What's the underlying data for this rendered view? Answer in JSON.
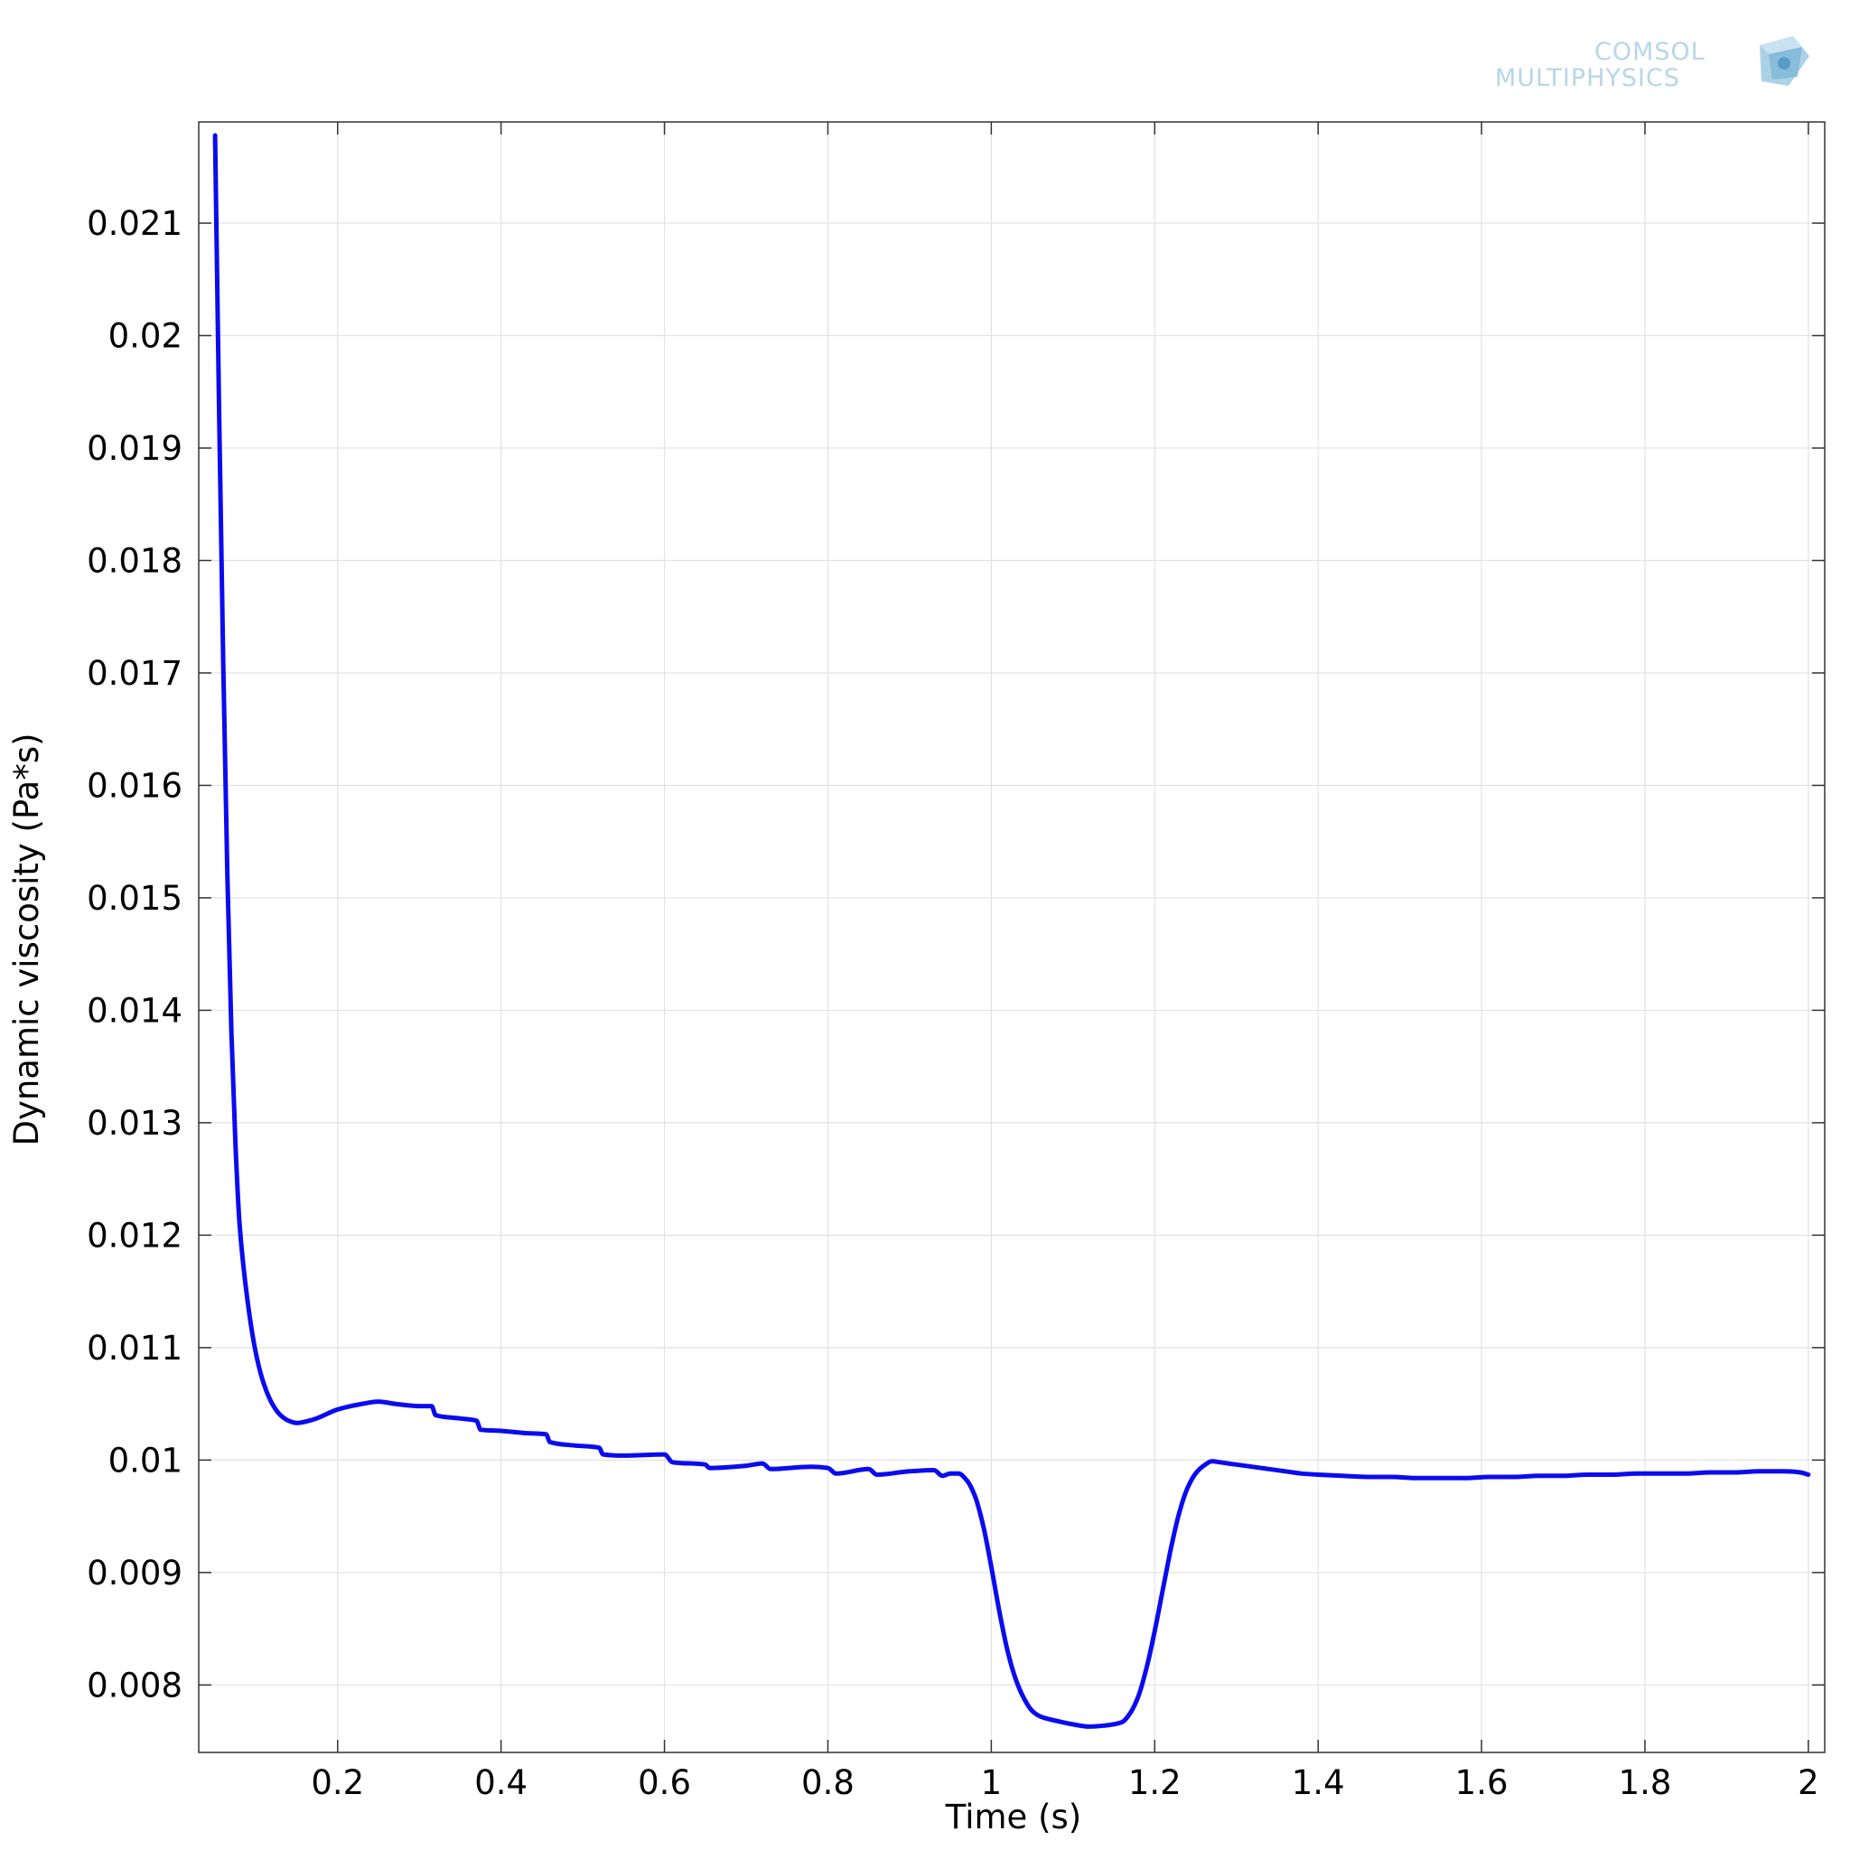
{
  "logo": {
    "line1": "COMSOL",
    "line2": "MULTIPHYSICS",
    "color": "#a9cfe6"
  },
  "chart_data": {
    "type": "line",
    "xlabel": "Time (s)",
    "ylabel": "Dynamic viscosity (Pa*s)",
    "xlim": [
      0.03,
      2.02
    ],
    "ylim": [
      0.0074,
      0.0219
    ],
    "xticks": [
      0.2,
      0.4,
      0.6,
      0.8,
      1,
      1.2,
      1.4,
      1.6,
      1.8,
      2
    ],
    "xtick_labels": [
      "0.2",
      "0.4",
      "0.6",
      "0.8",
      "1",
      "1.2",
      "1.4",
      "1.6",
      "1.8",
      "2"
    ],
    "yticks": [
      0.008,
      0.009,
      0.01,
      0.011,
      0.012,
      0.013,
      0.014,
      0.015,
      0.016,
      0.017,
      0.018,
      0.019,
      0.02,
      0.021
    ],
    "ytick_labels": [
      "0.008",
      "0.009",
      "0.01",
      "0.011",
      "0.012",
      "0.013",
      "0.014",
      "0.015",
      "0.016",
      "0.017",
      "0.018",
      "0.019",
      "0.02",
      "0.021"
    ],
    "grid": true,
    "line_color": "#0b0bf0",
    "series": [
      {
        "x": [
          0.05,
          0.055,
          0.06,
          0.065,
          0.07,
          0.075,
          0.08,
          0.09,
          0.1,
          0.11,
          0.12,
          0.13,
          0.14,
          0.15,
          0.17,
          0.2,
          0.23,
          0.25,
          0.27,
          0.3,
          0.315,
          0.32,
          0.35,
          0.37,
          0.375,
          0.4,
          0.43,
          0.455,
          0.46,
          0.49,
          0.52,
          0.525,
          0.55,
          0.6,
          0.61,
          0.65,
          0.655,
          0.7,
          0.72,
          0.73,
          0.78,
          0.8,
          0.81,
          0.85,
          0.86,
          0.9,
          0.93,
          0.94,
          0.95,
          0.96,
          0.97,
          0.98,
          0.99,
          1.0,
          1.01,
          1.02,
          1.03,
          1.04,
          1.05,
          1.06,
          1.08,
          1.1,
          1.12,
          1.14,
          1.16,
          1.17,
          1.18,
          1.19,
          1.2,
          1.21,
          1.22,
          1.23,
          1.24,
          1.25,
          1.26,
          1.27,
          1.28,
          1.29,
          1.3,
          1.32,
          1.34,
          1.36,
          1.38,
          1.4,
          1.43,
          1.46,
          1.49,
          1.52,
          1.55,
          1.58,
          1.61,
          1.64,
          1.67,
          1.7,
          1.73,
          1.76,
          1.79,
          1.82,
          1.85,
          1.88,
          1.91,
          1.94,
          1.97,
          1.99,
          2.0
        ],
        "y": [
          0.02178,
          0.0193,
          0.0171,
          0.0152,
          0.0138,
          0.0128,
          0.0121,
          0.0114,
          0.01095,
          0.01067,
          0.0105,
          0.0104,
          0.01035,
          0.01033,
          0.01036,
          0.01045,
          0.0105,
          0.01052,
          0.0105,
          0.01048,
          0.01048,
          0.0104,
          0.01037,
          0.01035,
          0.01027,
          0.01026,
          0.01024,
          0.01023,
          0.01016,
          0.01013,
          0.01011,
          0.01005,
          0.01004,
          0.01005,
          0.00998,
          0.00996,
          0.00993,
          0.00995,
          0.00997,
          0.00992,
          0.00994,
          0.00993,
          0.00988,
          0.00992,
          0.00987,
          0.0099,
          0.00991,
          0.00986,
          0.00988,
          0.00988,
          0.00982,
          0.00968,
          0.00942,
          0.00905,
          0.00865,
          0.0083,
          0.00805,
          0.00788,
          0.00777,
          0.00772,
          0.00768,
          0.00765,
          0.00763,
          0.00764,
          0.00767,
          0.00775,
          0.0079,
          0.00815,
          0.00848,
          0.00885,
          0.00922,
          0.00953,
          0.00975,
          0.00988,
          0.00995,
          0.00999,
          0.00998,
          0.00997,
          0.00996,
          0.00994,
          0.00992,
          0.0099,
          0.00988,
          0.00987,
          0.00986,
          0.00985,
          0.00985,
          0.00984,
          0.00984,
          0.00984,
          0.00985,
          0.00985,
          0.00986,
          0.00986,
          0.00987,
          0.00987,
          0.00988,
          0.00988,
          0.00988,
          0.00989,
          0.00989,
          0.0099,
          0.0099,
          0.00989,
          0.00987
        ]
      }
    ]
  }
}
